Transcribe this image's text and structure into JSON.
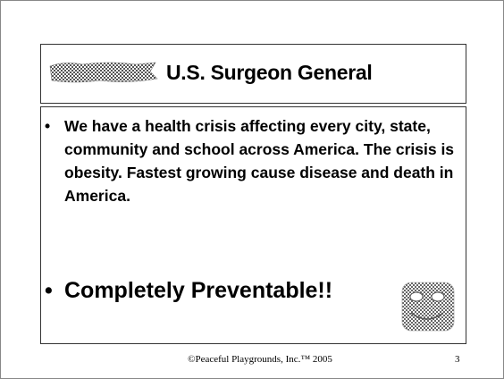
{
  "header": {
    "title": "U.S. Surgeon General"
  },
  "body": {
    "bullets": [
      "We have a health crisis affecting every city, state, community and school across America. The crisis is obesity.  Fastest growing cause disease and death in America.",
      "Completely Preventable!!"
    ]
  },
  "footer": {
    "copyright": "©Peaceful Playgrounds, Inc.™ 2005",
    "page_number": "3"
  }
}
